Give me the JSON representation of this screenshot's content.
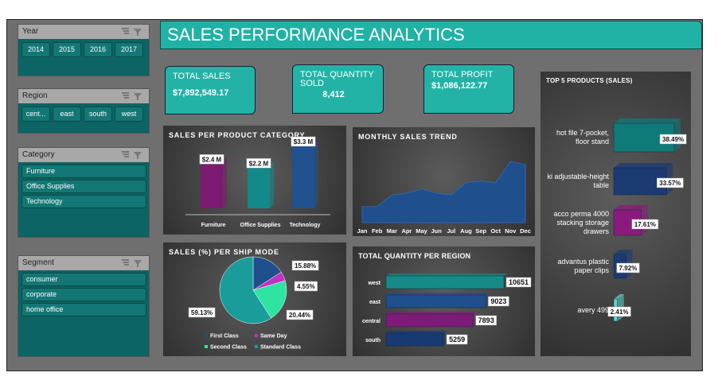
{
  "title": "SALES PERFORMANCE ANALYTICS",
  "slicers": [
    {
      "title": "Year",
      "items": [
        "2014",
        "2015",
        "2016",
        "2017"
      ]
    },
    {
      "title": "Region",
      "items": [
        "cent...",
        "east",
        "south",
        "west"
      ]
    },
    {
      "title": "Category",
      "items": [
        "Furniture",
        "Office Supplies",
        "Technology"
      ]
    },
    {
      "title": "Segment",
      "items": [
        "consumer",
        "corporate",
        "home office"
      ]
    }
  ],
  "kpis": [
    {
      "label": "TOTAL SALES",
      "value": "$7,892,549.17"
    },
    {
      "label": "TOTAL QUANTITY SOLD",
      "value": "8,412"
    },
    {
      "label": "TOTAL  PROFIT",
      "value": "$1,086,122.77"
    }
  ],
  "chart_data": [
    {
      "type": "bar",
      "title": "SALES PER PRODUCT CATEGORY",
      "categories": [
        "Furniture",
        "Office Supplies",
        "Technology"
      ],
      "values": [
        2.4,
        2.2,
        3.3
      ],
      "value_labels": [
        "$2.4 M",
        "$2.2 M",
        "$3.3 M"
      ],
      "colors": [
        "#7b1a70",
        "#14898a",
        "#1f528e"
      ]
    },
    {
      "type": "area",
      "title": "MONTHLY SALES TREND",
      "categories": [
        "Jan",
        "Feb",
        "Mar",
        "Apr",
        "May",
        "Jun",
        "Jul",
        "Aug",
        "Sep",
        "Oct",
        "Nov",
        "Dec"
      ],
      "values": [
        300000,
        300000,
        520000,
        550000,
        630000,
        550000,
        520000,
        750000,
        780000,
        750000,
        1150000,
        1090000
      ],
      "color": "#1f4f8c"
    },
    {
      "type": "pie",
      "title": "SALES (%) PER SHIP MODE",
      "categories": [
        "First Class",
        "Same Day",
        "Second Class",
        "Standard Class"
      ],
      "values": [
        15.88,
        4.55,
        20.44,
        59.13
      ],
      "value_labels": [
        "15.88%",
        "4.55%",
        "20.44%",
        "59.13%"
      ],
      "colors": [
        "#1f4f8c",
        "#c231c2",
        "#2fe3a0",
        "#1a9c9a"
      ]
    },
    {
      "type": "hbar",
      "title": "TOTAL QUANTITY PER REGION",
      "categories": [
        "west",
        "east",
        "central",
        "south"
      ],
      "values": [
        10651,
        9023,
        7893,
        5259
      ],
      "colors": [
        "#168a86",
        "#1f4f8c",
        "#7f1a78",
        "#183a72"
      ]
    },
    {
      "type": "hbar3d",
      "title": "TOP 5 PRODUCTS (SALES)",
      "categories": [
        "hot file 7-pocket, floor stand",
        "ki adjustable-height table",
        "acco perma 4000 stacking storage drawers",
        "advantus plastic paper clips",
        "avery 499"
      ],
      "values": [
        38.49,
        33.57,
        17.61,
        7.92,
        2.41
      ],
      "value_labels": [
        "38.49%",
        "33.57%",
        "17.61%",
        "7.92%",
        "2.41%"
      ],
      "colors": [
        "#0f7a78",
        "#1b3b72",
        "#8c1a7e",
        "#1b3b72",
        "#5fd3ca"
      ]
    }
  ]
}
